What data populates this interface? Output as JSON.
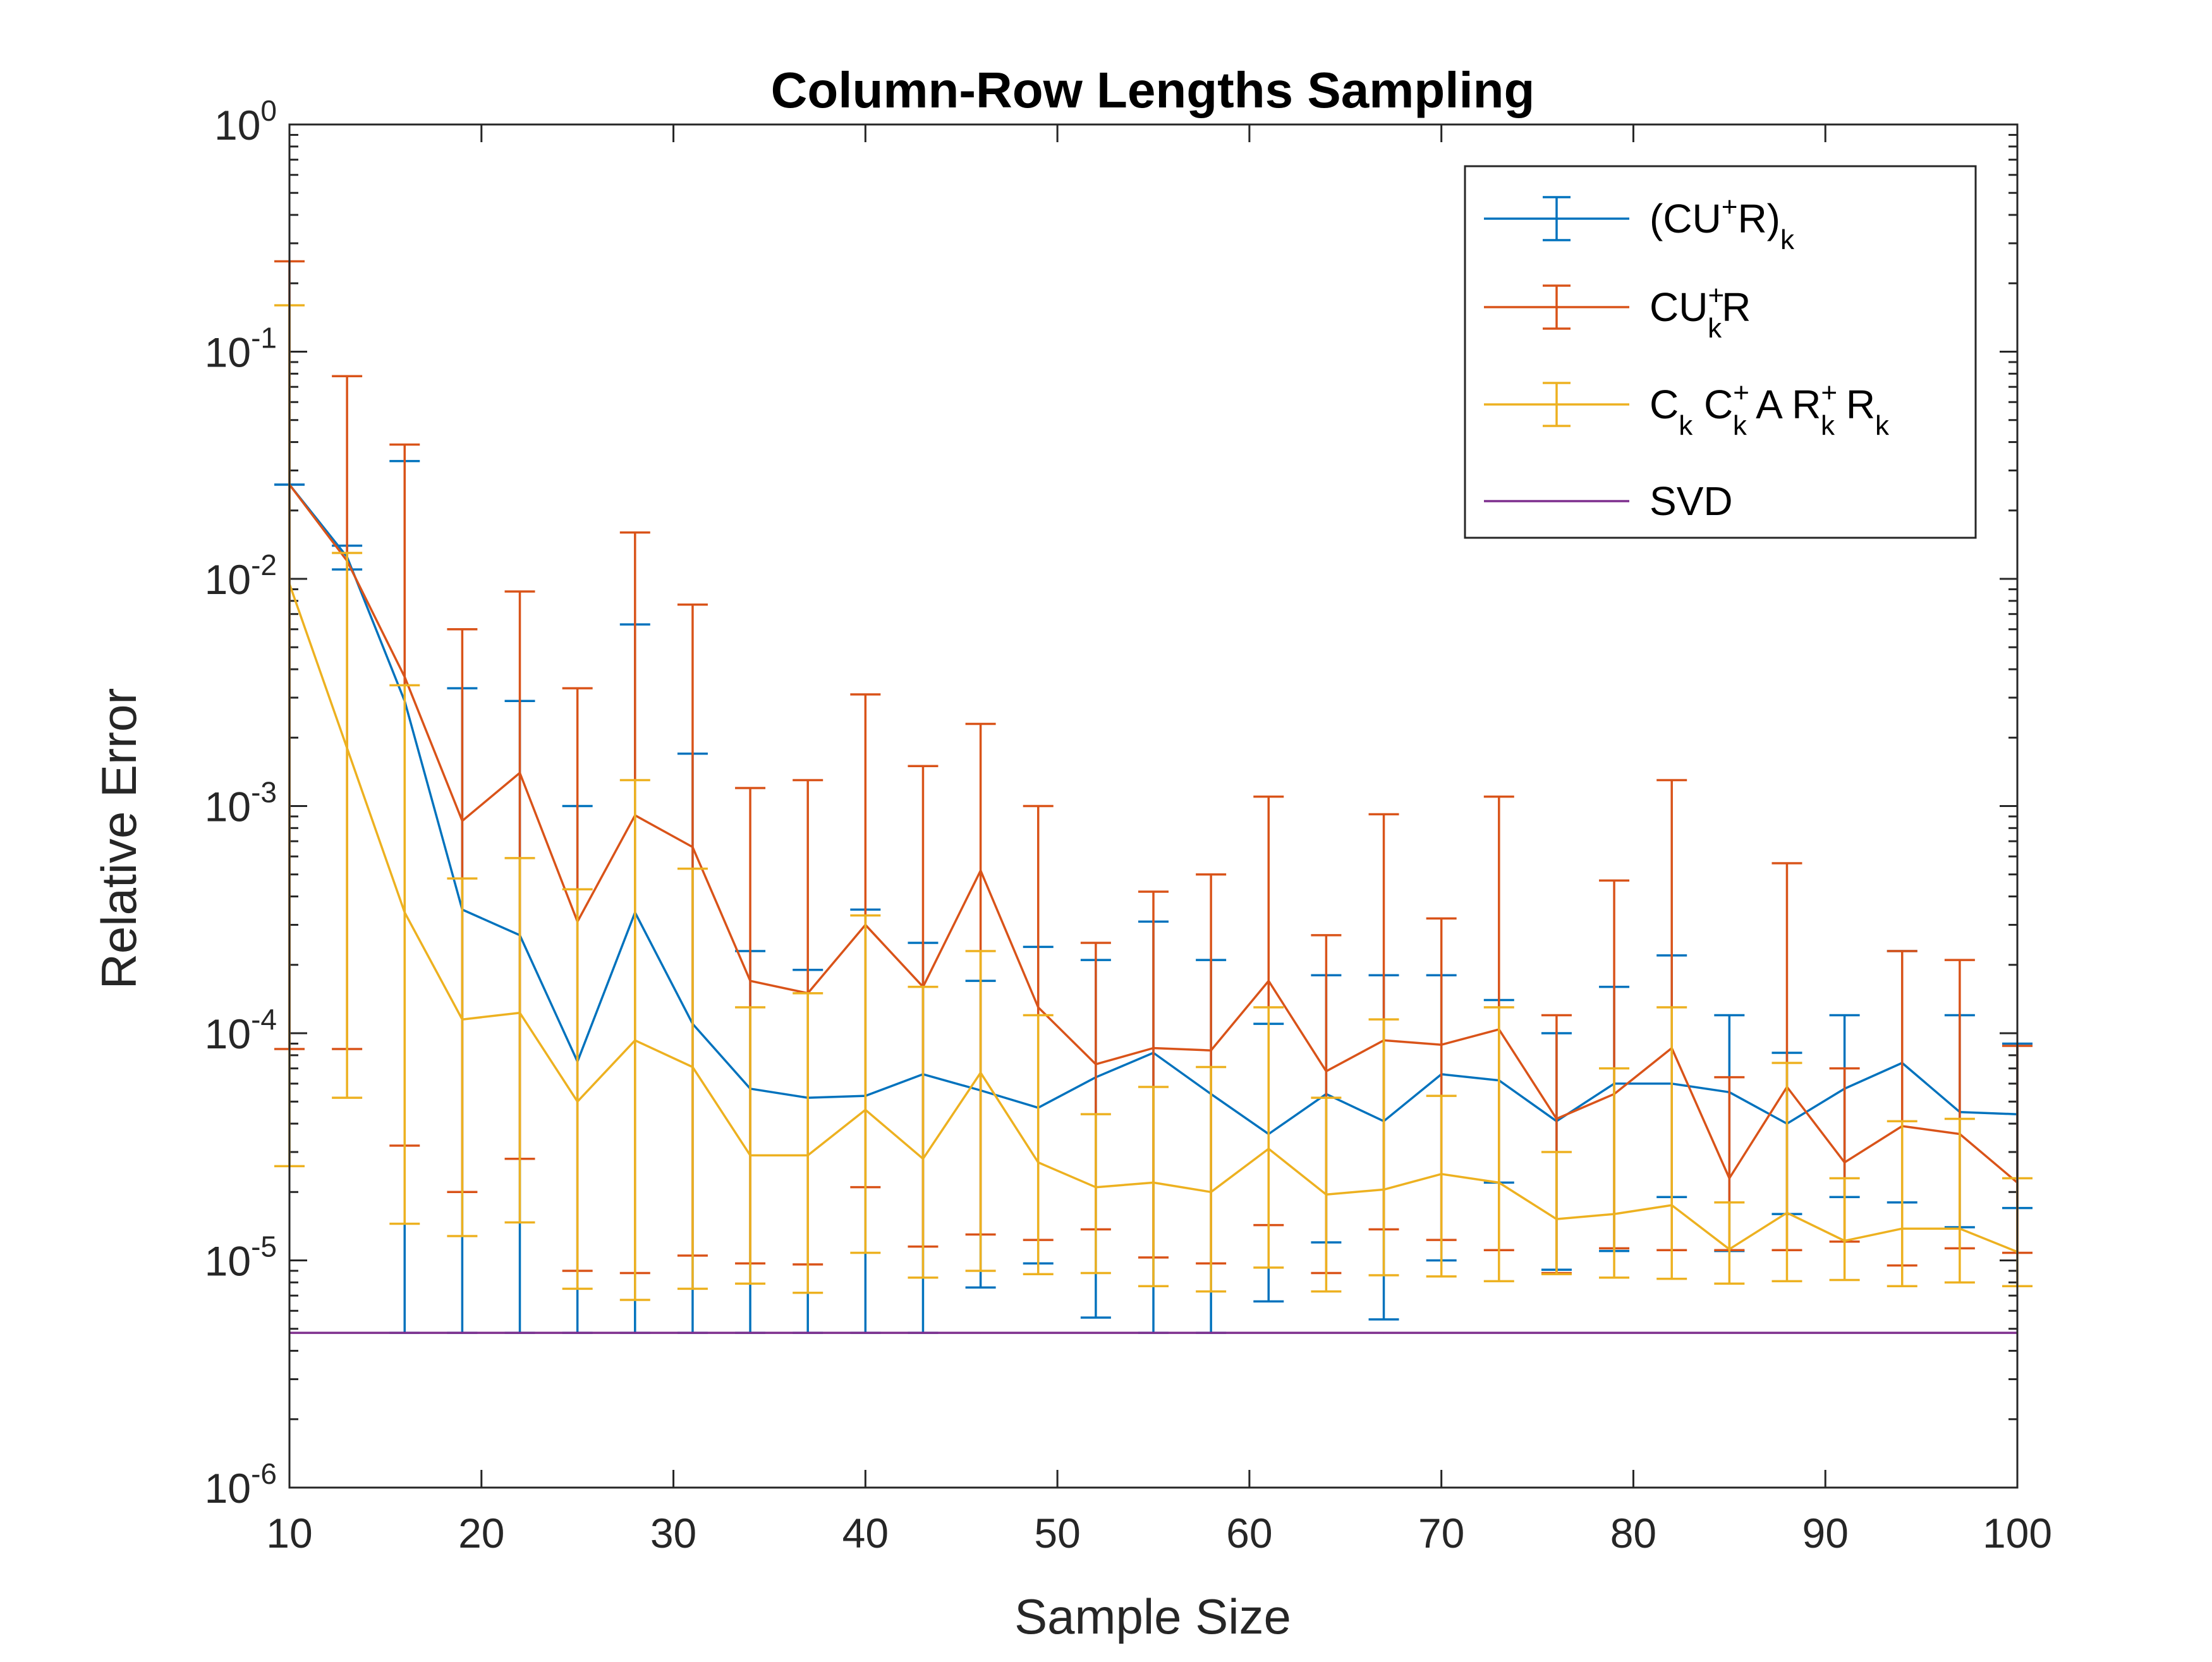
{
  "chart_data": {
    "type": "line",
    "title": "Column-Row Lengths Sampling",
    "xlabel": "Sample Size",
    "ylabel": "Relative Error",
    "xlim": [
      10,
      100
    ],
    "ylim_exponent": [
      -6,
      0
    ],
    "yscale": "log",
    "x_ticks": [
      "10",
      "20",
      "30",
      "40",
      "50",
      "60",
      "70",
      "80",
      "90",
      "100"
    ],
    "y_ticks": [
      {
        "base": "10",
        "exp": "-6"
      },
      {
        "base": "10",
        "exp": "-5"
      },
      {
        "base": "10",
        "exp": "-4"
      },
      {
        "base": "10",
        "exp": "-3"
      },
      {
        "base": "10",
        "exp": "-2"
      },
      {
        "base": "10",
        "exp": "-1"
      },
      {
        "base": "10",
        "exp": "0"
      }
    ],
    "x": [
      10,
      13,
      16,
      19,
      22,
      25,
      28,
      31,
      34,
      37,
      40,
      43,
      46,
      49,
      52,
      55,
      58,
      61,
      64,
      67,
      70,
      73,
      76,
      79,
      82,
      85,
      88,
      91,
      94,
      97,
      100
    ],
    "legend_position": "top-right",
    "series": [
      {
        "name": "(CU+R)k",
        "legend_parts": [
          {
            "t": "(CU"
          },
          {
            "t": "+",
            "s": "sup"
          },
          {
            "t": "R)"
          },
          {
            "t": "k",
            "s": "sub"
          }
        ],
        "color": "#0072BD",
        "values": [
          0.026,
          0.0125,
          0.0029,
          0.00035,
          0.00027,
          7.5e-05,
          0.00034,
          0.00011,
          5.7e-05,
          5.2e-05,
          5.3e-05,
          6.6e-05,
          5.6e-05,
          4.7e-05,
          6.4e-05,
          8.2e-05,
          5.4e-05,
          3.6e-05,
          5.4e-05,
          4.1e-05,
          6.6e-05,
          6.2e-05,
          4.1e-05,
          6e-05,
          6e-05,
          5.5e-05,
          4e-05,
          5.7e-05,
          7.4e-05,
          4.5e-05,
          4.4e-05
        ],
        "upper": [
          0.026,
          0.014,
          0.033,
          0.0033,
          0.0029,
          0.001,
          0.0063,
          0.0017,
          0.00023,
          0.00019,
          0.00035,
          0.00025,
          0.00017,
          0.00024,
          0.00021,
          0.00031,
          0.00021,
          0.00011,
          0.00018,
          0.00018,
          0.00018,
          0.00014,
          0.0001,
          0.00016,
          0.00022,
          0.00012,
          8.2e-05,
          0.00012,
          0.00023,
          0.00012,
          9e-05
        ],
        "lower": [
          0.026,
          0.011,
          4.8e-06,
          4.8e-06,
          4.8e-06,
          4.8e-06,
          4.8e-06,
          4.8e-06,
          4.8e-06,
          4.8e-06,
          4.8e-06,
          4.8e-06,
          7.6e-06,
          9.7e-06,
          5.6e-06,
          4.8e-06,
          4.8e-06,
          6.6e-06,
          1.2e-05,
          5.5e-06,
          1e-05,
          2.2e-05,
          9.1e-06,
          1.1e-05,
          1.9e-05,
          1.1e-05,
          1.6e-05,
          1.9e-05,
          1.8e-05,
          1.4e-05,
          1.7e-05
        ]
      },
      {
        "name": "CUk+R",
        "legend_parts": [
          {
            "t": "CU"
          },
          {
            "t": "+",
            "s": "sup"
          },
          {
            "t": "k",
            "s": "sub",
            "gap": "overlap"
          },
          {
            "t": "R"
          }
        ],
        "color": "#D95319",
        "values": [
          0.026,
          0.012,
          0.0037,
          0.00086,
          0.0014,
          0.00031,
          0.00091,
          0.00066,
          0.00017,
          0.00015,
          0.0003,
          0.00016,
          0.00052,
          0.00013,
          7.3e-05,
          8.6e-05,
          8.4e-05,
          0.00017,
          6.8e-05,
          9.3e-05,
          8.9e-05,
          0.000104,
          4.2e-05,
          5.4e-05,
          8.6e-05,
          2.3e-05,
          5.8e-05,
          2.7e-05,
          3.9e-05,
          3.6e-05,
          2.2e-05
        ],
        "upper": [
          0.25,
          0.078,
          0.039,
          0.006,
          0.0088,
          0.0033,
          0.016,
          0.0077,
          0.0012,
          0.0013,
          0.0031,
          0.0015,
          0.0023,
          0.001,
          0.00025,
          0.00042,
          0.0005,
          0.0011,
          0.00027,
          0.00092,
          0.00032,
          0.0011,
          0.00012,
          0.00047,
          0.0013,
          6.4e-05,
          0.00056,
          7e-05,
          0.00023,
          0.00021,
          8.8e-05
        ],
        "lower": [
          8.52e-05,
          8.52e-05,
          3.2e-05,
          2e-05,
          2.8e-05,
          9e-06,
          8.8e-06,
          1.05e-05,
          9.7e-06,
          9.6e-06,
          2.1e-05,
          1.15e-05,
          1.3e-05,
          1.23e-05,
          1.37e-05,
          1.03e-05,
          9.7e-06,
          1.43e-05,
          8.8e-06,
          1.37e-05,
          1.23e-05,
          1.11e-05,
          8.8e-06,
          1.13e-05,
          1.11e-05,
          1.11e-05,
          1.11e-05,
          1.21e-05,
          9.5e-06,
          1.13e-05,
          1.08e-05
        ]
      },
      {
        "name": "Ck Ck+ A Rk+ Rk",
        "legend_parts": [
          {
            "t": "C"
          },
          {
            "t": "k",
            "s": "sub"
          },
          {
            "t": " C"
          },
          {
            "t": "+",
            "s": "sup"
          },
          {
            "t": "k",
            "s": "sub",
            "gap": "overlap"
          },
          {
            "t": " A R"
          },
          {
            "t": "+",
            "s": "sup"
          },
          {
            "t": "k",
            "s": "sub",
            "gap": "overlap"
          },
          {
            "t": " R"
          },
          {
            "t": "k",
            "s": "sub"
          }
        ],
        "color": "#EDB120",
        "values": [
          0.0095,
          0.0018,
          0.00034,
          0.000115,
          0.000123,
          5e-05,
          9.3e-05,
          7.1e-05,
          2.9e-05,
          2.9e-05,
          4.6e-05,
          2.8e-05,
          6.7e-05,
          2.7e-05,
          2.1e-05,
          2.2e-05,
          2e-05,
          3.1e-05,
          1.95e-05,
          2.05e-05,
          2.4e-05,
          2.2e-05,
          1.52e-05,
          1.6e-05,
          1.75e-05,
          1.12e-05,
          1.62e-05,
          1.22e-05,
          1.38e-05,
          1.38e-05,
          1.09e-05
        ],
        "upper": [
          0.16,
          0.013,
          0.0034,
          0.00048,
          0.00059,
          0.00043,
          0.0013,
          0.00053,
          0.00013,
          0.00015,
          0.00033,
          0.00016,
          0.00023,
          0.00012,
          4.4e-05,
          5.8e-05,
          7.1e-05,
          0.00013,
          5.2e-05,
          0.000115,
          5.3e-05,
          0.00013,
          3e-05,
          7e-05,
          0.00013,
          1.8e-05,
          7.4e-05,
          2.3e-05,
          4.1e-05,
          4.2e-05,
          2.3e-05
        ],
        "lower": [
          2.6e-05,
          5.2e-05,
          1.45e-05,
          1.28e-05,
          1.47e-05,
          7.5e-06,
          6.7e-06,
          7.5e-06,
          7.9e-06,
          7.2e-06,
          1.08e-05,
          8.4e-06,
          9e-06,
          8.7e-06,
          8.8e-06,
          7.7e-06,
          7.3e-06,
          9.3e-06,
          7.3e-06,
          8.6e-06,
          8.5e-06,
          8.1e-06,
          8.7e-06,
          8.4e-06,
          8.3e-06,
          7.9e-06,
          8.1e-06,
          8.2e-06,
          7.7e-06,
          8e-06,
          7.7e-06
        ]
      },
      {
        "name": "SVD",
        "legend_parts": [
          {
            "t": "SVD"
          }
        ],
        "color": "#7E2F8E",
        "values": [
          4.8e-06,
          4.8e-06,
          4.8e-06,
          4.8e-06,
          4.8e-06,
          4.8e-06,
          4.8e-06,
          4.8e-06,
          4.8e-06,
          4.8e-06,
          4.8e-06,
          4.8e-06,
          4.8e-06,
          4.8e-06,
          4.8e-06,
          4.8e-06,
          4.8e-06,
          4.8e-06,
          4.8e-06,
          4.8e-06,
          4.8e-06,
          4.8e-06,
          4.8e-06,
          4.8e-06,
          4.8e-06,
          4.8e-06,
          4.8e-06,
          4.8e-06,
          4.8e-06,
          4.8e-06,
          4.8e-06
        ]
      }
    ]
  }
}
